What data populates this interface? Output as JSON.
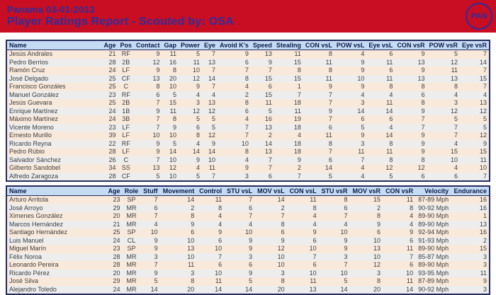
{
  "banner": {
    "team_line": "Panama 03-01-2013",
    "report_title": "Player Ratings Report - Scouted by: OSA",
    "badge": "PAN"
  },
  "colors": {
    "banner_bg": "#c90d22",
    "banner_text": "#2b2f9e",
    "table_border": "#252c5f",
    "thead_bg": "#c5dbf3",
    "row_odd": "#f9e9db",
    "row_even": "#ededed",
    "name_link": "#5b50b5"
  },
  "batters_table": {
    "columns": [
      "Name",
      "Age",
      "Pos",
      "Contact",
      "Gap",
      "Power",
      "Eye",
      "Avoid K's",
      "Speed",
      "Stealing",
      "CON vsL",
      "POW vsL",
      "Eye vsL",
      "CON vsR",
      "POW vsR",
      "Eye vsR"
    ],
    "rows": [
      [
        "Jesús Andrales",
        21,
        "RF",
        9,
        11,
        5,
        7,
        9,
        13,
        11,
        8,
        4,
        6,
        9,
        5,
        7
      ],
      [
        "Pedro Berrios",
        28,
        "2B",
        12,
        16,
        11,
        13,
        6,
        9,
        15,
        11,
        9,
        11,
        13,
        12,
        14
      ],
      [
        "Ramón Cruz",
        24,
        "LF",
        9,
        8,
        10,
        7,
        7,
        7,
        8,
        8,
        9,
        6,
        9,
        11,
        7
      ],
      [
        "José Delgado",
        25,
        "CF",
        13,
        20,
        12,
        14,
        8,
        15,
        15,
        11,
        10,
        11,
        13,
        13,
        15
      ],
      [
        "Francisco Gonzáles",
        25,
        "C",
        8,
        10,
        9,
        7,
        4,
        6,
        1,
        9,
        9,
        8,
        8,
        8,
        7
      ],
      [
        "Manuel González",
        23,
        "RF",
        6,
        5,
        4,
        4,
        2,
        15,
        7,
        7,
        4,
        4,
        6,
        4,
        4
      ],
      [
        "Jesús Guevara",
        25,
        "2B",
        7,
        15,
        3,
        13,
        8,
        11,
        18,
        7,
        3,
        11,
        8,
        3,
        13
      ],
      [
        "Enrique Martínez",
        24,
        "1B",
        9,
        11,
        12,
        12,
        6,
        5,
        11,
        9,
        14,
        14,
        9,
        12,
        12
      ],
      [
        "Máximo Martínez",
        24,
        "3B",
        7,
        8,
        5,
        5,
        4,
        16,
        19,
        7,
        6,
        6,
        7,
        5,
        5
      ],
      [
        "Vicente Moreno",
        23,
        "LF",
        7,
        9,
        6,
        5,
        7,
        13,
        18,
        6,
        5,
        4,
        7,
        7,
        5
      ],
      [
        "Ernesto Murillo",
        39,
        "LF",
        10,
        10,
        8,
        12,
        7,
        2,
        4,
        11,
        9,
        14,
        9,
        7,
        12
      ],
      [
        "Ricardo Reyna",
        22,
        "RF",
        9,
        5,
        4,
        9,
        10,
        14,
        18,
        8,
        3,
        8,
        9,
        4,
        9
      ],
      [
        "Pedro Rúbio",
        28,
        "LF",
        9,
        14,
        14,
        14,
        8,
        13,
        18,
        7,
        11,
        11,
        9,
        15,
        15
      ],
      [
        "Salvador Sánchez",
        26,
        "C",
        7,
        10,
        9,
        10,
        4,
        7,
        9,
        6,
        7,
        8,
        8,
        10,
        11
      ],
      [
        "Gilberto Sandobel",
        34,
        "SS",
        13,
        12,
        4,
        11,
        9,
        7,
        2,
        14,
        4,
        12,
        12,
        4,
        10
      ],
      [
        "Alfredo Zaragoza",
        28,
        "CF",
        5,
        10,
        5,
        7,
        3,
        6,
        7,
        5,
        4,
        5,
        6,
        6,
        7
      ]
    ]
  },
  "pitchers_table": {
    "columns": [
      "Name",
      "Age",
      "Role",
      "Stuff",
      "Movement",
      "Control",
      "STU vsL",
      "MOV vsL",
      "CON vsL",
      "STU vsR",
      "MOV vsR",
      "CON vsR",
      "Velocity",
      "Endurance"
    ],
    "rows": [
      [
        "Arturo Arritola",
        23,
        "SP",
        7,
        14,
        11,
        7,
        14,
        11,
        8,
        15,
        11,
        "87-89 Mph",
        16
      ],
      [
        "José Arroyo",
        29,
        "MR",
        6,
        2,
        8,
        6,
        2,
        8,
        6,
        2,
        8,
        "90-92 Mph",
        16
      ],
      [
        "Ximenes González",
        20,
        "MR",
        7,
        8,
        4,
        7,
        7,
        4,
        7,
        8,
        4,
        "89-90 Mph",
        1
      ],
      [
        "Marcos Hernández",
        21,
        "MR",
        4,
        9,
        4,
        4,
        8,
        4,
        4,
        9,
        4,
        "89-90 Mph",
        13
      ],
      [
        "Santiago Hernández",
        25,
        "SP",
        10,
        6,
        9,
        10,
        6,
        9,
        10,
        6,
        9,
        "92-94 Mph",
        16
      ],
      [
        "Luis Manuel",
        24,
        "CL",
        9,
        10,
        6,
        9,
        9,
        6,
        9,
        10,
        6,
        "91-93 Mph",
        2
      ],
      [
        "Miguel Marín",
        23,
        "SP",
        9,
        13,
        10,
        9,
        12,
        10,
        9,
        13,
        11,
        "89-90 Mph",
        15
      ],
      [
        "Félix Noroa",
        28,
        "MR",
        3,
        10,
        7,
        3,
        10,
        7,
        3,
        10,
        7,
        "85-87 Mph",
        3
      ],
      [
        "Leonardo Pereira",
        28,
        "MR",
        7,
        11,
        6,
        6,
        10,
        6,
        7,
        12,
        6,
        "89-90 Mph",
        3
      ],
      [
        "Ricardo Pérez",
        20,
        "MR",
        9,
        3,
        10,
        9,
        3,
        10,
        10,
        3,
        10,
        "93-95 Mph",
        11
      ],
      [
        "José Silva",
        29,
        "MR",
        5,
        8,
        11,
        5,
        8,
        11,
        5,
        8,
        11,
        "87-89 Mph",
        9
      ],
      [
        "Alejandro Toledo",
        24,
        "MR",
        14,
        20,
        14,
        14,
        20,
        13,
        14,
        20,
        14,
        "90-92 Mph",
        3
      ]
    ]
  }
}
